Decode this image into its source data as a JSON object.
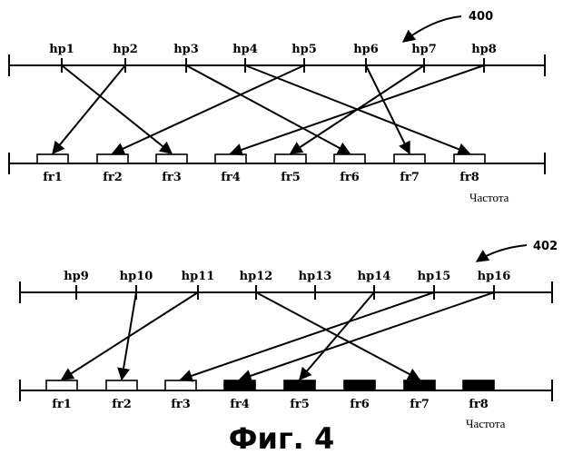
{
  "caption": "Фиг. 4",
  "diagrams": [
    {
      "ref": "400",
      "axis_label": "Частота",
      "hopping_points": [
        "hp1",
        "hp2",
        "hp3",
        "hp4",
        "hp5",
        "hp6",
        "hp7",
        "hp8"
      ],
      "frequencies": [
        {
          "label": "fr1",
          "filled": false
        },
        {
          "label": "fr2",
          "filled": false
        },
        {
          "label": "fr3",
          "filled": false
        },
        {
          "label": "fr4",
          "filled": false
        },
        {
          "label": "fr5",
          "filled": false
        },
        {
          "label": "fr6",
          "filled": false
        },
        {
          "label": "fr7",
          "filled": false
        },
        {
          "label": "fr8",
          "filled": false
        }
      ],
      "mappings": [
        {
          "from": "hp1",
          "to": "fr3"
        },
        {
          "from": "hp2",
          "to": "fr1"
        },
        {
          "from": "hp3",
          "to": "fr6"
        },
        {
          "from": "hp4",
          "to": "fr8"
        },
        {
          "from": "hp5",
          "to": "fr2"
        },
        {
          "from": "hp6",
          "to": "fr7"
        },
        {
          "from": "hp7",
          "to": "fr5"
        },
        {
          "from": "hp8",
          "to": "fr4"
        }
      ]
    },
    {
      "ref": "402",
      "axis_label": "Частота",
      "hopping_points": [
        "hp9",
        "hp10",
        "hp11",
        "hp12",
        "hp13",
        "hp14",
        "hp15",
        "hp16"
      ],
      "frequencies": [
        {
          "label": "fr1",
          "filled": false
        },
        {
          "label": "fr2",
          "filled": false
        },
        {
          "label": "fr3",
          "filled": false
        },
        {
          "label": "fr4",
          "filled": true
        },
        {
          "label": "fr5",
          "filled": true
        },
        {
          "label": "fr6",
          "filled": true
        },
        {
          "label": "fr7",
          "filled": true
        },
        {
          "label": "fr8",
          "filled": true
        }
      ],
      "mappings": [
        {
          "from": "hp10",
          "to": "fr2"
        },
        {
          "from": "hp11",
          "to": "fr1"
        },
        {
          "from": "hp12",
          "to": "fr7"
        },
        {
          "from": "hp14",
          "to": "fr5"
        },
        {
          "from": "hp15",
          "to": "fr3"
        },
        {
          "from": "hp16",
          "to": "fr4"
        }
      ]
    }
  ]
}
